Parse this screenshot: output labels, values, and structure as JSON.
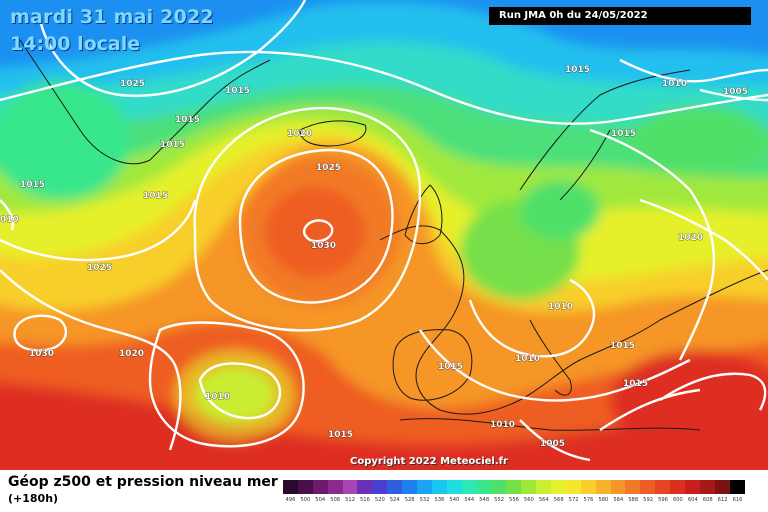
{
  "header": {
    "date": "mardi 31 mai 2022",
    "time": "14:00 locale",
    "run_label": "Run JMA 0h du 24/05/2022"
  },
  "copyright": "Copyright 2022 Meteociel.fr",
  "footer": {
    "title": "Géop z500 et pression niveau mer",
    "subtitle": "(+180h)"
  },
  "legend": {
    "values": [
      "496",
      "500",
      "504",
      "508",
      "512",
      "516",
      "520",
      "524",
      "528",
      "532",
      "536",
      "540",
      "544",
      "548",
      "552",
      "556",
      "560",
      "564",
      "568",
      "572",
      "576",
      "580",
      "584",
      "588",
      "592",
      "596",
      "600",
      "604",
      "608",
      "612",
      "616"
    ],
    "colors": [
      "#2a0a2a",
      "#4a0f4a",
      "#6e1a6e",
      "#8e2a8e",
      "#aa44b0",
      "#6d2eb8",
      "#4a3fd1",
      "#2f5fe0",
      "#1e7ff0",
      "#1aa4f5",
      "#19c6f2",
      "#20dde0",
      "#2ee6b8",
      "#39e68c",
      "#4fe06a",
      "#74e048",
      "#9ee83a",
      "#c8f030",
      "#e6f02c",
      "#f5e62e",
      "#f8cf2c",
      "#f7b22a",
      "#f59628",
      "#f27a26",
      "#ee5d24",
      "#e84322",
      "#de2e20",
      "#c81e1e",
      "#a81818",
      "#7e1212",
      "#000000"
    ]
  },
  "isobars": [
    {
      "value": "1025",
      "group": "north"
    },
    {
      "value": "1015",
      "group": "north"
    },
    {
      "value": "1015",
      "group": "north"
    },
    {
      "value": "1015",
      "group": "north"
    },
    {
      "value": "1015",
      "group": "north"
    },
    {
      "value": "1015",
      "group": "north"
    },
    {
      "value": "1020",
      "group": "center"
    },
    {
      "value": "1025",
      "group": "center"
    },
    {
      "value": "1030",
      "group": "center"
    },
    {
      "value": "1015",
      "group": "east"
    },
    {
      "value": "1010",
      "group": "east"
    },
    {
      "value": "1005",
      "group": "east"
    },
    {
      "value": "1015",
      "group": "east"
    },
    {
      "value": "1020",
      "group": "east"
    },
    {
      "value": "1010",
      "group": "south"
    },
    {
      "value": "1010",
      "group": "south"
    },
    {
      "value": "1015",
      "group": "south"
    },
    {
      "value": "1015",
      "group": "south"
    },
    {
      "value": "1015",
      "group": "south"
    },
    {
      "value": "1010",
      "group": "south"
    },
    {
      "value": "1005",
      "group": "south"
    },
    {
      "value": "1010",
      "group": "south"
    },
    {
      "value": "1015",
      "group": "west"
    },
    {
      "value": "1025",
      "group": "west"
    },
    {
      "value": "1030",
      "group": "west"
    },
    {
      "value": "1020",
      "group": "west"
    },
    {
      "value": "1010",
      "group": "west"
    },
    {
      "value": "1015",
      "group": "south"
    },
    {
      "value": "010",
      "group": "west"
    }
  ]
}
